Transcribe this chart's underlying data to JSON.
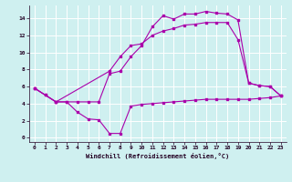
{
  "xlabel": "Windchill (Refroidissement éolien,°C)",
  "bg_color": "#cff0f0",
  "grid_color": "#ffffff",
  "line_color": "#aa00aa",
  "xlim": [
    -0.5,
    23.5
  ],
  "ylim": [
    -0.5,
    15.5
  ],
  "xticks": [
    0,
    1,
    2,
    3,
    4,
    5,
    6,
    7,
    8,
    9,
    10,
    11,
    12,
    13,
    14,
    15,
    16,
    17,
    18,
    19,
    20,
    21,
    22,
    23
  ],
  "yticks": [
    0,
    2,
    4,
    6,
    8,
    10,
    12,
    14
  ],
  "line1_x": [
    0,
    1,
    2,
    3,
    4,
    5,
    6,
    7,
    8,
    9,
    10,
    11,
    12,
    13,
    14,
    15,
    16,
    17,
    18,
    19,
    20,
    21,
    22,
    23
  ],
  "line1_y": [
    5.8,
    5.0,
    4.2,
    4.2,
    3.0,
    2.2,
    2.1,
    0.5,
    0.5,
    3.7,
    3.9,
    4.0,
    4.1,
    4.2,
    4.3,
    4.4,
    4.5,
    4.5,
    4.5,
    4.5,
    4.5,
    4.6,
    4.7,
    4.9
  ],
  "line2_x": [
    0,
    2,
    7,
    8,
    9,
    10,
    11,
    12,
    13,
    14,
    15,
    16,
    17,
    18,
    19,
    20,
    21,
    22,
    23
  ],
  "line2_y": [
    5.8,
    4.2,
    7.8,
    9.5,
    10.8,
    11.0,
    12.0,
    12.5,
    12.8,
    13.2,
    13.3,
    13.5,
    13.5,
    13.5,
    11.5,
    6.4,
    6.1,
    6.0,
    4.9
  ],
  "line3_x": [
    0,
    1,
    2,
    3,
    4,
    5,
    6,
    7,
    8,
    9,
    10,
    11,
    12,
    13,
    14,
    15,
    16,
    17,
    18,
    19,
    20,
    21,
    22,
    23
  ],
  "line3_y": [
    5.8,
    5.0,
    4.2,
    4.2,
    4.2,
    4.2,
    4.2,
    7.5,
    7.8,
    9.5,
    10.8,
    13.0,
    14.3,
    13.9,
    14.5,
    14.5,
    14.8,
    14.6,
    14.5,
    13.8,
    6.4,
    6.1,
    6.0,
    4.9
  ]
}
